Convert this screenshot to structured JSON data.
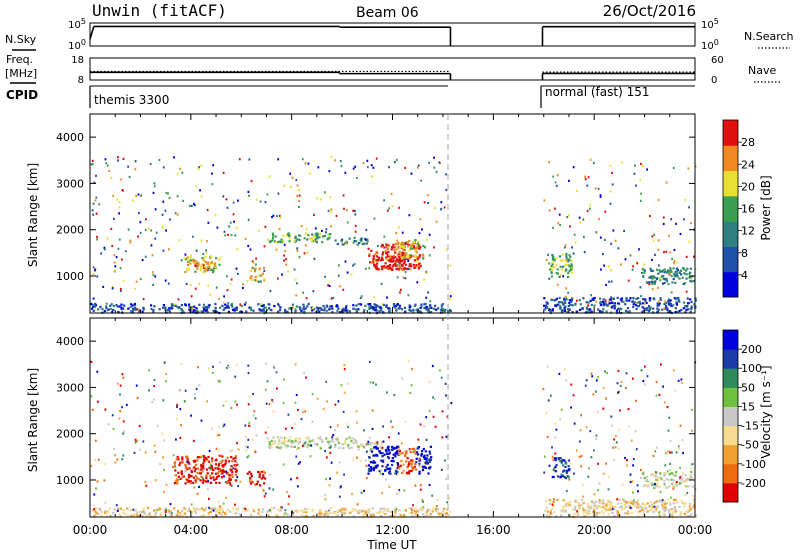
{
  "header": {
    "radar": "Unwin (fitACF)",
    "beam": "Beam 06",
    "date": "26/Oct/2016"
  },
  "left_labels": {
    "nsky": "N.Sky",
    "freq_line1": "Freq.",
    "freq_line2": "[MHz]",
    "cpid": "CPID"
  },
  "right_labels": {
    "nsearch": "N.Search",
    "nave": "Nave"
  },
  "cpid_labels": {
    "first": "themis 3300",
    "second": "normal (fast) 151"
  },
  "chart_data": [
    {
      "type": "line",
      "name": "noise",
      "left_ticks": [
        "10^5",
        "10^0"
      ],
      "right_ticks": [
        "10^5",
        "10^0"
      ],
      "xlim": [
        0,
        24
      ],
      "segments": [
        {
          "x": [
            0.0,
            0.15
          ],
          "y": [
            0.3,
            0.85
          ]
        },
        {
          "x": [
            0.15,
            9.9
          ],
          "y": [
            0.85,
            0.85
          ]
        },
        {
          "x": [
            9.9,
            14.3
          ],
          "y": [
            0.82,
            0.82
          ]
        },
        {
          "x": [
            14.3,
            14.3
          ],
          "y": [
            0.82,
            0.0
          ]
        },
        {
          "x": [
            17.95,
            17.95
          ],
          "y": [
            0.0,
            0.82
          ]
        },
        {
          "x": [
            17.95,
            24.0
          ],
          "y": [
            0.84,
            0.84
          ]
        }
      ]
    },
    {
      "type": "line",
      "name": "frequency",
      "left_ticks": [
        "18",
        "8"
      ],
      "right_ticks": [
        "60",
        "0"
      ],
      "xlim": [
        0,
        24
      ],
      "segments": [
        {
          "x": [
            0.0,
            9.9
          ],
          "y": [
            11.5,
            11.5
          ]
        },
        {
          "x": [
            9.9,
            9.9
          ],
          "y": [
            11.5,
            10.9
          ]
        },
        {
          "x": [
            9.9,
            14.3
          ],
          "y": [
            10.9,
            10.9
          ]
        },
        {
          "x": [
            14.3,
            14.3
          ],
          "y": [
            10.9,
            8.0
          ]
        },
        {
          "x": [
            17.95,
            17.95
          ],
          "y": [
            8.0,
            11.0
          ]
        },
        {
          "x": [
            17.95,
            24.0
          ],
          "y": [
            11.0,
            11.0
          ]
        }
      ],
      "nave_segments": [
        {
          "x": [
            0.0,
            14.3
          ],
          "y": [
            11.9,
            11.9
          ]
        },
        {
          "x": [
            17.95,
            24.0
          ],
          "y": [
            11.6,
            11.6
          ]
        }
      ]
    },
    {
      "type": "heatmap",
      "name": "power",
      "ylabel": "Slant Range [km]",
      "xlim": [
        0,
        24
      ],
      "ylim": [
        200,
        4500
      ],
      "yticks": [
        1000,
        2000,
        3000,
        4000
      ],
      "colorbar_label": "Power [dB]",
      "colorbar_ticks": [
        "28",
        "24",
        "20",
        "16",
        "12",
        "8",
        "4"
      ],
      "colors": [
        "#0000dd",
        "#1f4fa8",
        "#2f7f7f",
        "#3aa050",
        "#e8e030",
        "#f08a20",
        "#e01010"
      ],
      "regions": [
        {
          "x0": 0.0,
          "x1": 14.3,
          "y0": 220,
          "y1": 420,
          "level": 1
        },
        {
          "x0": 17.95,
          "x1": 24.0,
          "y0": 220,
          "y1": 550,
          "level": 1
        },
        {
          "x0": 3.7,
          "x1": 5.1,
          "y0": 1100,
          "y1": 1450,
          "level": 4
        },
        {
          "x0": 4.1,
          "x1": 4.8,
          "y0": 1150,
          "y1": 1350,
          "level": 5
        },
        {
          "x0": 6.3,
          "x1": 6.9,
          "y0": 900,
          "y1": 1200,
          "level": 4
        },
        {
          "x0": 7.0,
          "x1": 9.5,
          "y0": 1750,
          "y1": 1950,
          "level": 3
        },
        {
          "x0": 9.6,
          "x1": 11.0,
          "y0": 1700,
          "y1": 1850,
          "level": 2
        },
        {
          "x0": 11.0,
          "x1": 13.1,
          "y0": 1150,
          "y1": 1750,
          "level": 6
        },
        {
          "x0": 11.3,
          "x1": 12.5,
          "y0": 1150,
          "y1": 1450,
          "level": 7
        },
        {
          "x0": 12.2,
          "x1": 13.3,
          "y0": 1400,
          "y1": 1800,
          "level": 4
        },
        {
          "x0": 18.2,
          "x1": 19.1,
          "y0": 1000,
          "y1": 1500,
          "level": 3
        },
        {
          "x0": 21.8,
          "x1": 23.9,
          "y0": 850,
          "y1": 1200,
          "level": 2
        }
      ]
    },
    {
      "type": "heatmap",
      "name": "velocity",
      "ylabel": "Slant Range [km]",
      "xlim": [
        0,
        24
      ],
      "ylim": [
        200,
        4500
      ],
      "yticks": [
        1000,
        2000,
        3000,
        4000
      ],
      "colorbar_label": "Velocity [m s⁻¹]",
      "colorbar_ticks": [
        "200",
        "100",
        "50",
        "15",
        "-15",
        "-50",
        "-100",
        "-200"
      ],
      "colors": [
        "#e00000",
        "#f06a10",
        "#f0a030",
        "#f6dc90",
        "#c8c8c8",
        "#70c040",
        "#2e8a5a",
        "#1a3aa8",
        "#0000dd"
      ],
      "regions": [
        {
          "x0": 0.0,
          "x1": 14.3,
          "y0": 220,
          "y1": 420,
          "level": 3
        },
        {
          "x0": 17.95,
          "x1": 24.0,
          "y0": 220,
          "y1": 600,
          "level": 3
        },
        {
          "x0": 3.3,
          "x1": 5.8,
          "y0": 950,
          "y1": 1550,
          "level": 0
        },
        {
          "x0": 6.2,
          "x1": 6.9,
          "y0": 900,
          "y1": 1200,
          "level": 0
        },
        {
          "x0": 7.0,
          "x1": 10.6,
          "y0": 1700,
          "y1": 1950,
          "level": 4
        },
        {
          "x0": 10.6,
          "x1": 11.6,
          "y0": 1650,
          "y1": 1850,
          "level": 4
        },
        {
          "x0": 11.0,
          "x1": 12.2,
          "y0": 1150,
          "y1": 1750,
          "level": 8
        },
        {
          "x0": 12.2,
          "x1": 12.9,
          "y0": 1150,
          "y1": 1700,
          "level": 1
        },
        {
          "x0": 12.9,
          "x1": 13.5,
          "y0": 1150,
          "y1": 1750,
          "level": 8
        },
        {
          "x0": 18.3,
          "x1": 19.0,
          "y0": 1050,
          "y1": 1500,
          "level": 7
        },
        {
          "x0": 21.8,
          "x1": 23.9,
          "y0": 850,
          "y1": 1200,
          "level": 4
        }
      ]
    }
  ],
  "x_axis": {
    "ticks": [
      "00:00",
      "04:00",
      "08:00",
      "12:00",
      "16:00",
      "20:00",
      "00:00"
    ],
    "label": "Time UT"
  }
}
